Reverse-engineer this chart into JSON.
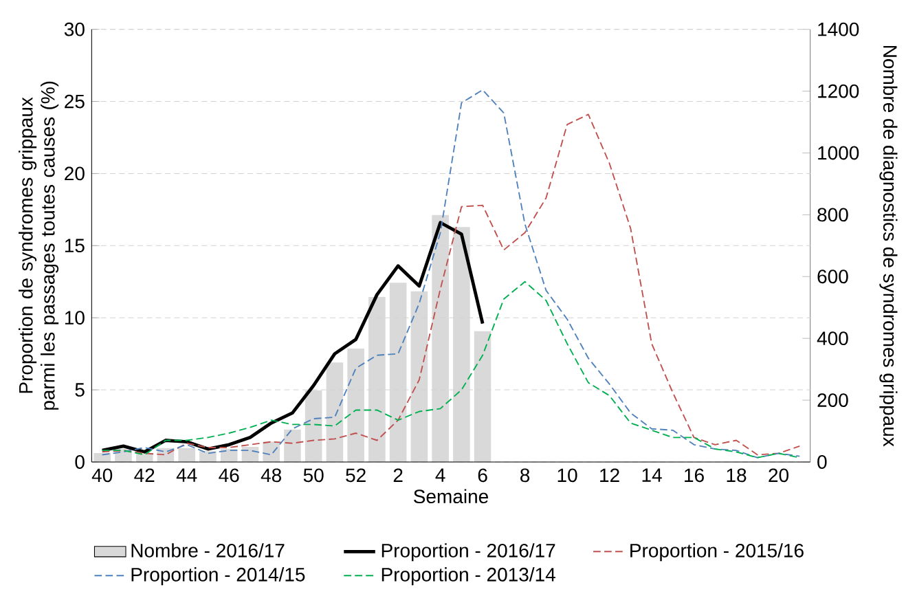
{
  "chart_data": {
    "type": "line",
    "xlabel": "Semaine",
    "ylabel": "Proportion de syndromes grippaux parmi les passages toutes causes (%)",
    "y2label": "Nombre de diagnostics de syndromes grippaux",
    "categories": [
      "40",
      null,
      "42",
      null,
      "44",
      null,
      "46",
      null,
      "48",
      null,
      "50",
      null,
      "52",
      null,
      "2",
      null,
      "4",
      null,
      "6",
      null,
      "8",
      null,
      "10",
      null,
      "12",
      null,
      "14",
      null,
      "16",
      null,
      "18",
      null,
      "20",
      null
    ],
    "ylim": [
      0,
      30
    ],
    "yticks": [
      0,
      5,
      10,
      15,
      20,
      25,
      30
    ],
    "y2lim": [
      0,
      1400
    ],
    "y2ticks": [
      0,
      200,
      400,
      600,
      800,
      1000,
      1200,
      1400
    ],
    "grid": "y",
    "legend": "bottom",
    "marker": "none",
    "series": [
      {
        "name": "Nombre - 2016/17",
        "type": "bar",
        "axis": "y2",
        "color": "#d9d9d9",
        "values": [
          29,
          42,
          26,
          45,
          45,
          35,
          42,
          49,
          66,
          105,
          232,
          322,
          367,
          534,
          580,
          552,
          799,
          760,
          423,
          null,
          null,
          null,
          null,
          null,
          null,
          null,
          null,
          null,
          null,
          null,
          null,
          null,
          null,
          null
        ]
      },
      {
        "name": "Proportion - 2016/17",
        "color": "#000000",
        "line_style": "solid",
        "values": [
          0.8,
          1.1,
          0.7,
          1.5,
          1.4,
          0.9,
          1.2,
          1.7,
          2.7,
          3.4,
          5.3,
          7.5,
          8.5,
          11.6,
          13.6,
          12.2,
          16.6,
          15.8,
          9.6,
          null,
          null,
          null,
          null,
          null,
          null,
          null,
          null,
          null,
          null,
          null,
          null,
          null,
          null,
          null
        ]
      },
      {
        "name": "Proportion - 2015/16",
        "color": "#c0504d",
        "line_style": "dashed",
        "values": [
          0.7,
          0.8,
          0.6,
          0.5,
          1.3,
          1.0,
          1.0,
          1.2,
          1.4,
          1.3,
          1.5,
          1.6,
          2.0,
          1.5,
          2.9,
          5.7,
          12.0,
          17.7,
          17.8,
          14.7,
          15.9,
          18.3,
          23.4,
          24.1,
          20.7,
          16.2,
          8.2,
          4.8,
          1.7,
          1.2,
          1.5,
          0.5,
          0.6,
          1.1
        ]
      },
      {
        "name": "Proportion - 2014/15",
        "color": "#4f81bd",
        "line_style": "dashed",
        "values": [
          0.5,
          0.7,
          1.0,
          0.7,
          1.2,
          0.6,
          0.8,
          0.8,
          0.5,
          2.3,
          3.0,
          3.1,
          6.5,
          7.4,
          7.5,
          11.0,
          15.9,
          24.9,
          25.8,
          24.2,
          16.5,
          11.9,
          9.9,
          7.2,
          5.4,
          3.4,
          2.3,
          2.2,
          1.2,
          0.9,
          0.8,
          0.3,
          0.6,
          0.4
        ]
      },
      {
        "name": "Proportion - 2013/14",
        "color": "#00b050",
        "line_style": "dashed",
        "values": [
          0.8,
          0.8,
          0.5,
          1.5,
          1.5,
          1.7,
          2.0,
          2.4,
          2.9,
          2.6,
          2.6,
          2.5,
          3.6,
          3.6,
          2.9,
          3.5,
          3.7,
          5.0,
          7.4,
          11.3,
          12.5,
          11.2,
          8.2,
          5.5,
          4.6,
          2.7,
          2.2,
          1.7,
          1.7,
          0.9,
          0.7,
          0.3,
          0.6,
          0.3
        ]
      }
    ]
  }
}
